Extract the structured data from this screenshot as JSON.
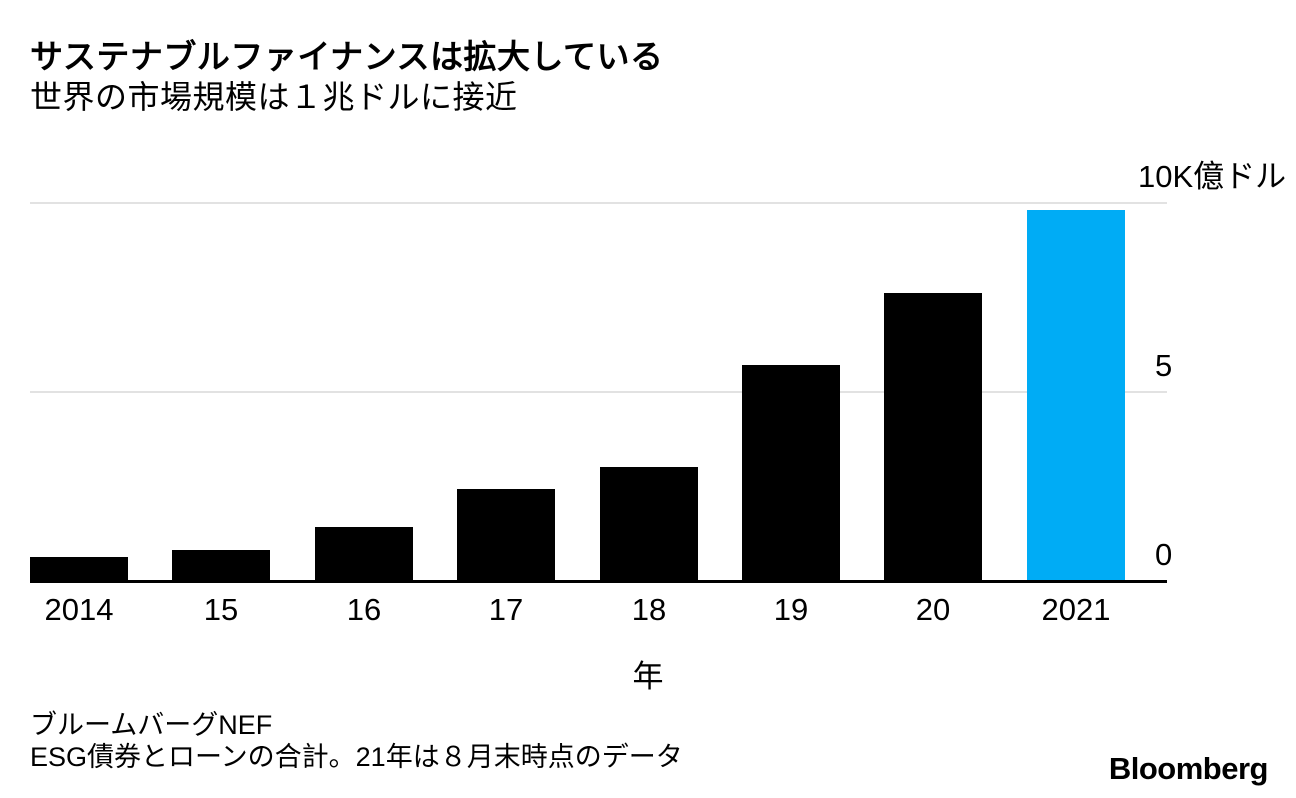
{
  "header": {
    "title": "サステナブルファイナンスは拡大している",
    "subtitle": "世界の市場規模は１兆ドルに接近"
  },
  "chart_data": {
    "type": "bar",
    "title": "サステナブルファイナンスは拡大している",
    "subtitle": "世界の市場規模は１兆ドルに接近",
    "categories": [
      "2014",
      "15",
      "16",
      "17",
      "18",
      "19",
      "20",
      "2021"
    ],
    "values": [
      0.6,
      0.8,
      1.4,
      2.4,
      3.0,
      5.7,
      7.6,
      9.8
    ],
    "unit": "K億ドル",
    "xlabel": "年",
    "ylim": [
      0,
      10
    ],
    "yticks": [
      {
        "value": 0,
        "label": "0"
      },
      {
        "value": 5,
        "label": "5"
      },
      {
        "value": 10,
        "label": "10K億ドル"
      }
    ],
    "grid": "horizontal",
    "legend": "none",
    "bar_color": "#000000",
    "highlight_color": "#00ACF5",
    "highlight_index": 7,
    "gridline_color": "#e2e2e2"
  },
  "footer": {
    "source": "ブルームバーグNEF",
    "note": "ESG債券とローンの合計。21年は８月末時点のデータ",
    "logo": "Bloomberg"
  }
}
